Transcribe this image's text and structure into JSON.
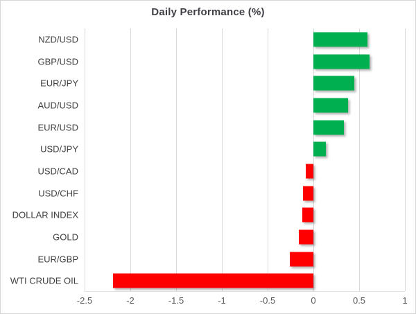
{
  "chart_data": {
    "type": "bar",
    "orientation": "horizontal",
    "title": "Daily Performance (%)",
    "categories": [
      "NZD/USD",
      "GBP/USD",
      "EUR/JPY",
      "AUD/USD",
      "EUR/USD",
      "USD/JPY",
      "USD/CAD",
      "USD/CHF",
      "DOLLAR INDEX",
      "GOLD",
      "EUR/GBP",
      "WTI CRUDE OIL"
    ],
    "values": [
      0.59,
      0.61,
      0.45,
      0.38,
      0.33,
      0.14,
      -0.08,
      -0.11,
      -0.12,
      -0.16,
      -0.26,
      -2.19
    ],
    "xlabel": "",
    "ylabel": "",
    "xlim": [
      -2.5,
      1
    ],
    "xticks": [
      -2.5,
      -2,
      -1.5,
      -1,
      -0.5,
      0,
      0.5,
      1
    ],
    "xtick_labels": [
      "-2.5",
      "-2",
      "-1.5",
      "-1",
      "-0.5",
      "0",
      "0.5",
      "1"
    ],
    "grid": true,
    "legend": null,
    "colors": {
      "positive_bar": "#00B050",
      "negative_bar": "#FF0000",
      "gridline": "#D9D9D9",
      "title_text": "#3F3F46",
      "category_text": "#404040",
      "tick_text": "#595959",
      "chart_border": "#D7D7D7",
      "background": "#FFFFFF"
    }
  }
}
